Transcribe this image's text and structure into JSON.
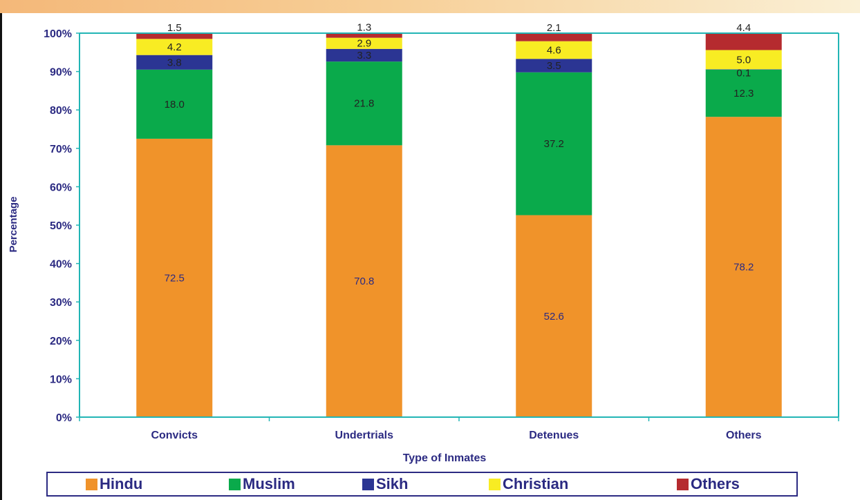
{
  "chart_data": {
    "type": "bar",
    "stacked": true,
    "normalized": true,
    "xlabel": "Type of Inmates",
    "ylabel": "Percentage",
    "categories": [
      "Convicts",
      "Undertrials",
      "Detenues",
      "Others"
    ],
    "yticks": [
      "0%",
      "10%",
      "20%",
      "30%",
      "40%",
      "50%",
      "60%",
      "70%",
      "80%",
      "90%",
      "100%"
    ],
    "ylim": [
      0,
      100
    ],
    "grid": false,
    "legend_position": "bottom",
    "series": [
      {
        "name": "Hindu",
        "color": "#f0932a",
        "values": [
          72.5,
          70.8,
          52.6,
          78.2
        ],
        "labels": [
          "72.5",
          "70.8",
          "52.6",
          "78.2"
        ]
      },
      {
        "name": "Muslim",
        "color": "#0aaa4b",
        "values": [
          18.0,
          21.8,
          37.2,
          12.3
        ],
        "labels": [
          "18.0",
          "21.8",
          "37.2",
          "12.3"
        ]
      },
      {
        "name": "Sikh",
        "color": "#2b3593",
        "values": [
          3.8,
          3.3,
          3.5,
          0.1
        ],
        "labels": [
          "3.8",
          "3.3",
          "3.5",
          "0.1"
        ]
      },
      {
        "name": "Christian",
        "color": "#f8ec23",
        "values": [
          4.2,
          2.9,
          4.6,
          5.0
        ],
        "labels": [
          "4.2",
          "2.9",
          "4.6",
          "5.0"
        ]
      },
      {
        "name": "Others",
        "color": "#b52b2f",
        "values": [
          1.5,
          1.3,
          2.1,
          4.4
        ],
        "labels": [
          "1.5",
          "1.3",
          "2.1",
          "4.4"
        ]
      }
    ]
  },
  "colors": {
    "axis": "#21b5b5",
    "tick_text": "#2b2a82",
    "label_text_dark": "#222222",
    "label_text_on_orange": "#2b2a82"
  }
}
